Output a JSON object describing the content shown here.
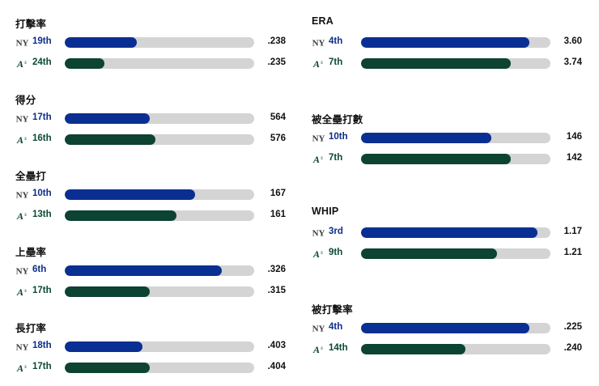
{
  "colors": {
    "yankees": "#0a2f93",
    "athletics": "#0c4332",
    "track": "#d4d4d4"
  },
  "teams": {
    "yankees": {
      "logo_icon": "yankees-logo-icon"
    },
    "athletics": {
      "logo_icon": "athletics-logo-icon"
    }
  },
  "left_stats": [
    {
      "title": "打擊率",
      "rows": [
        {
          "team": "yankees",
          "rank": "19th",
          "value": ".238",
          "fill": 0.38
        },
        {
          "team": "athletics",
          "rank": "24th",
          "value": ".235",
          "fill": 0.21
        }
      ]
    },
    {
      "title": "得分",
      "rows": [
        {
          "team": "yankees",
          "rank": "17th",
          "value": "564",
          "fill": 0.45
        },
        {
          "team": "athletics",
          "rank": "16th",
          "value": "576",
          "fill": 0.48
        }
      ]
    },
    {
      "title": "全壘打",
      "rows": [
        {
          "team": "yankees",
          "rank": "10th",
          "value": "167",
          "fill": 0.69
        },
        {
          "team": "athletics",
          "rank": "13th",
          "value": "161",
          "fill": 0.59
        }
      ]
    },
    {
      "title": "上壘率",
      "rows": [
        {
          "team": "yankees",
          "rank": "6th",
          "value": ".326",
          "fill": 0.83
        },
        {
          "team": "athletics",
          "rank": "17th",
          "value": ".315",
          "fill": 0.45
        }
      ]
    },
    {
      "title": "長打率",
      "rows": [
        {
          "team": "yankees",
          "rank": "18th",
          "value": ".403",
          "fill": 0.41
        },
        {
          "team": "athletics",
          "rank": "17th",
          "value": ".404",
          "fill": 0.45
        }
      ]
    }
  ],
  "right_stats": [
    {
      "title": "ERA",
      "rows": [
        {
          "team": "yankees",
          "rank": "4th",
          "value": "3.60",
          "fill": 0.89
        },
        {
          "team": "athletics",
          "rank": "7th",
          "value": "3.74",
          "fill": 0.79
        }
      ]
    },
    {
      "title": "被全壘打數",
      "rows": [
        {
          "team": "yankees",
          "rank": "10th",
          "value": "146",
          "fill": 0.69
        },
        {
          "team": "athletics",
          "rank": "7th",
          "value": "142",
          "fill": 0.79
        }
      ]
    },
    {
      "title": "WHIP",
      "rows": [
        {
          "team": "yankees",
          "rank": "3rd",
          "value": "1.17",
          "fill": 0.93
        },
        {
          "team": "athletics",
          "rank": "9th",
          "value": "1.21",
          "fill": 0.72
        }
      ]
    },
    {
      "title": "被打擊率",
      "rows": [
        {
          "team": "yankees",
          "rank": "4th",
          "value": ".225",
          "fill": 0.89
        },
        {
          "team": "athletics",
          "rank": "14th",
          "value": ".240",
          "fill": 0.55
        }
      ]
    }
  ]
}
